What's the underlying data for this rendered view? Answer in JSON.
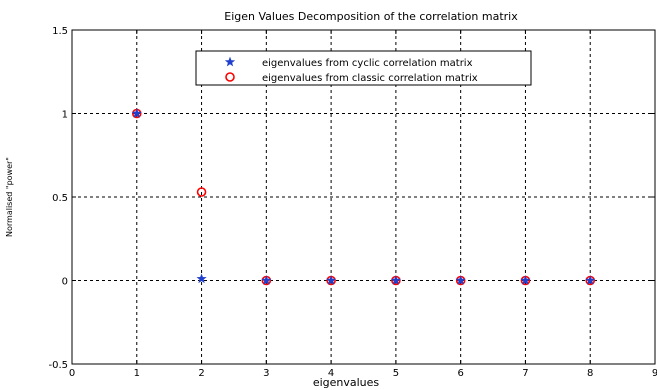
{
  "chart_data": {
    "type": "scatter",
    "title": "Eigen Values Decomposition of the correlation matrix",
    "xlabel": "eigenvalues",
    "ylabel": "Normalised \"power\"",
    "xlim": [
      0,
      9
    ],
    "ylim": [
      -0.5,
      1.5
    ],
    "xticks": [
      "0",
      "1",
      "2",
      "3",
      "4",
      "5",
      "6",
      "7",
      "8",
      "9"
    ],
    "yticks": [
      "-0.5",
      "0",
      "0.5",
      "1",
      "1.5"
    ],
    "grid": true,
    "legend_position": "top-right",
    "series": [
      {
        "name": "eigenvalues from cyclic correlation matrix",
        "marker": "star",
        "color": "#1f3fcc",
        "x": [
          1,
          2,
          3,
          4,
          5,
          6,
          7,
          8
        ],
        "y": [
          1.0,
          0.01,
          0.0,
          0.0,
          0.0,
          0.0,
          0.0,
          0.0
        ]
      },
      {
        "name": "eigenvalues from classic correlation matrix",
        "marker": "circle",
        "color": "#ff0000",
        "x": [
          1,
          2,
          3,
          4,
          5,
          6,
          7,
          8
        ],
        "y": [
          1.0,
          0.53,
          0.0,
          0.0,
          0.0,
          0.0,
          0.0,
          0.0
        ]
      }
    ]
  }
}
